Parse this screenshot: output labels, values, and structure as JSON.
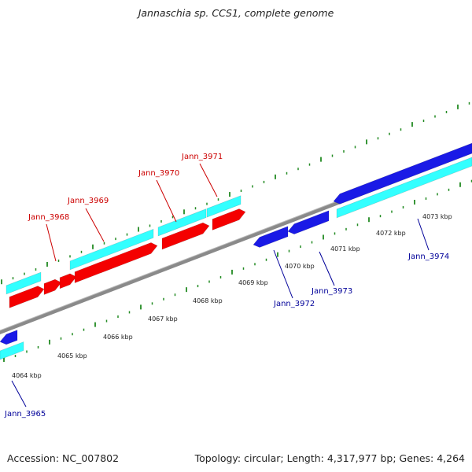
{
  "title": "Jannaschia sp. CCS1, complete genome",
  "footer": {
    "accession": "Accession: NC_007802",
    "stats": "Topology: circular; Length: 4,317,977 bp; Genes: 4,264"
  },
  "colors": {
    "forward_gene": "#f40000",
    "reverse_gene": "#1a1ae6",
    "cds": "#33ffff",
    "backbone": "#8a8a8a",
    "tick": "#228b22",
    "forward_label": "#cc0000",
    "reverse_label": "#000099"
  },
  "scale": {
    "unit": "kbp",
    "ticks_kbp": [
      4064,
      4065,
      4066,
      4067,
      4068,
      4069,
      4070,
      4071,
      4072,
      4073
    ]
  },
  "tick_labels": [
    "4064 kbp",
    "4065 kbp",
    "4066 kbp",
    "4067 kbp",
    "4068 kbp",
    "4069 kbp",
    "4070 kbp",
    "4071 kbp",
    "4072 kbp",
    "4073 kbp"
  ],
  "genes": [
    {
      "name": "Jann_3965",
      "strand": "reverse"
    },
    {
      "name": "Jann_3968",
      "strand": "forward"
    },
    {
      "name": "Jann_3969",
      "strand": "forward"
    },
    {
      "name": "Jann_3970",
      "strand": "forward"
    },
    {
      "name": "Jann_3971",
      "strand": "forward"
    },
    {
      "name": "Jann_3972",
      "strand": "reverse"
    },
    {
      "name": "Jann_3973",
      "strand": "reverse"
    },
    {
      "name": "Jann_3974",
      "strand": "reverse"
    }
  ]
}
